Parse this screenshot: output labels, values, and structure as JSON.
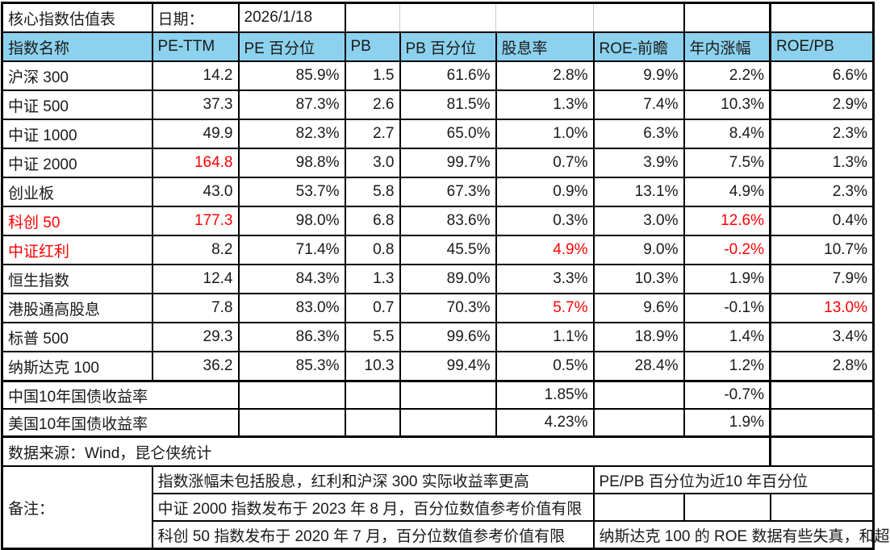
{
  "top": {
    "title": "核心指数估值表",
    "date_label": "日期：",
    "date_value": "2026/1/18"
  },
  "colors": {
    "header_bg": "#8CD2EE",
    "highlight_red": "#FF0000",
    "border": "#000000",
    "gridline_gray": "#C9C9C9"
  },
  "table": {
    "columns": [
      "指数名称",
      "PE-TTM",
      "PE 百分位",
      "PB",
      "PB 百分位",
      "股息率",
      "ROE-前瞻",
      "年内涨幅",
      "ROE/PB"
    ],
    "rows": [
      {
        "name": "沪深 300",
        "name_red": false,
        "values": [
          "14.2",
          "85.9%",
          "1.5",
          "61.6%",
          "2.8%",
          "9.9%",
          "2.2%",
          "6.6%"
        ],
        "red_cols": []
      },
      {
        "name": "中证 500",
        "name_red": false,
        "values": [
          "37.3",
          "87.3%",
          "2.6",
          "81.5%",
          "1.3%",
          "7.4%",
          "10.3%",
          "2.9%"
        ],
        "red_cols": []
      },
      {
        "name": "中证 1000",
        "name_red": false,
        "values": [
          "49.9",
          "82.3%",
          "2.7",
          "65.0%",
          "1.0%",
          "6.3%",
          "8.4%",
          "2.3%"
        ],
        "red_cols": []
      },
      {
        "name": "中证 2000",
        "name_red": false,
        "values": [
          "164.8",
          "98.8%",
          "3.0",
          "99.7%",
          "0.7%",
          "3.9%",
          "7.5%",
          "1.3%"
        ],
        "red_cols": [
          0
        ]
      },
      {
        "name": "创业板",
        "name_red": false,
        "values": [
          "43.0",
          "53.7%",
          "5.8",
          "67.3%",
          "0.9%",
          "13.1%",
          "4.9%",
          "2.3%"
        ],
        "red_cols": []
      },
      {
        "name": "科创 50",
        "name_red": true,
        "values": [
          "177.3",
          "98.0%",
          "6.8",
          "83.6%",
          "0.3%",
          "3.0%",
          "12.6%",
          "0.4%"
        ],
        "red_cols": [
          0,
          6
        ]
      },
      {
        "name": "中证红利",
        "name_red": true,
        "values": [
          "8.2",
          "71.4%",
          "0.8",
          "45.5%",
          "4.9%",
          "9.0%",
          "-0.2%",
          "10.7%"
        ],
        "red_cols": [
          4,
          6
        ]
      },
      {
        "name": "恒生指数",
        "name_red": false,
        "values": [
          "12.4",
          "84.3%",
          "1.3",
          "89.0%",
          "3.3%",
          "10.3%",
          "1.9%",
          "7.9%"
        ],
        "red_cols": []
      },
      {
        "name": "港股通高股息",
        "name_red": false,
        "values": [
          "7.8",
          "83.0%",
          "0.7",
          "70.3%",
          "5.7%",
          "9.6%",
          "-0.1%",
          "13.0%"
        ],
        "red_cols": [
          4,
          7
        ]
      },
      {
        "name": "标普 500",
        "name_red": false,
        "values": [
          "29.3",
          "86.3%",
          "5.5",
          "99.6%",
          "1.1%",
          "18.9%",
          "1.4%",
          "3.4%"
        ],
        "red_cols": []
      },
      {
        "name": "纳斯达克 100",
        "name_red": false,
        "values": [
          "36.2",
          "85.3%",
          "10.3",
          "99.4%",
          "0.5%",
          "28.4%",
          "1.2%",
          "2.8%"
        ],
        "red_cols": []
      }
    ],
    "bond_rows": [
      {
        "name": "中国10年国债收益率",
        "dividend_yield": "1.85%",
        "ytd_change": "-0.7%"
      },
      {
        "name": "美国10年国债收益率",
        "dividend_yield": "4.23%",
        "ytd_change": "1.9%"
      }
    ]
  },
  "source_row": "数据来源：Wind，昆仑侠统计",
  "notes": {
    "label": "备注：",
    "left_items": [
      "指数涨幅未包括股息，红利和沪深 300 实际收益率更高",
      "中证 2000 指数发布于 2023 年 8 月，百分位数值参考价值有限",
      "科创 50 指数发布于 2020 年 7 月，百分位数值参考价值有限"
    ],
    "right_note_1": "PE/PB 百分位为近10 年百分位",
    "right_note_3": "纳斯达克 100 的 ROE 数据有些失真，和超"
  }
}
